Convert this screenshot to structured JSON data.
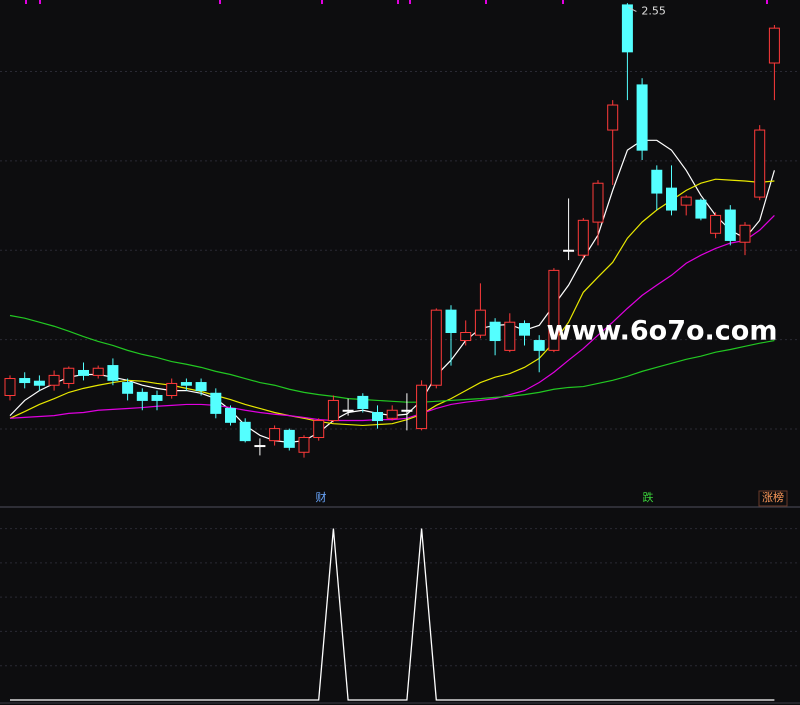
{
  "chart_data": [
    {
      "type": "candlestick",
      "watermark": "www.6o7o.com",
      "annotations": [
        {
          "text": "2.55",
          "value": 2.55
        }
      ],
      "events": [
        "财",
        "跌",
        "涨榜"
      ],
      "up_color": "#ff3a3a",
      "down_color": "#54ffff",
      "flat_color": "#ffffff",
      "ylim": [
        1.43,
        2.56
      ],
      "grid_lines": [
        1.6,
        1.8,
        2.0,
        2.2,
        2.4
      ],
      "open": [
        1.675,
        1.713,
        1.707,
        1.698,
        1.702,
        1.731,
        1.72,
        1.742,
        1.704,
        1.682,
        1.675,
        1.675,
        1.704,
        1.704,
        1.68,
        1.646,
        1.615,
        1.563,
        1.574,
        1.597,
        1.548,
        1.581,
        1.619,
        1.642,
        1.673,
        1.637,
        1.624,
        1.642,
        1.601,
        1.698,
        1.866,
        1.798,
        1.81,
        1.839,
        1.776,
        1.836,
        1.798,
        1.776,
        2.0,
        1.989,
        2.063,
        2.269,
        2.549,
        2.37,
        2.179,
        2.139,
        2.101,
        2.112,
        2.038,
        2.09,
        2.018,
        2.119,
        2.419
      ],
      "high": [
        1.72,
        1.727,
        1.72,
        1.731,
        1.74,
        1.749,
        1.742,
        1.758,
        1.713,
        1.691,
        1.686,
        1.713,
        1.713,
        1.713,
        1.691,
        1.653,
        1.624,
        1.579,
        1.608,
        1.601,
        1.586,
        1.624,
        1.675,
        1.668,
        1.68,
        1.653,
        1.653,
        1.68,
        1.709,
        1.87,
        1.877,
        1.843,
        1.926,
        1.848,
        1.859,
        1.843,
        1.81,
        1.96,
        2.116,
        2.072,
        2.157,
        2.336,
        2.553,
        2.385,
        2.19,
        2.19,
        2.123,
        2.116,
        2.085,
        2.101,
        2.063,
        2.28,
        2.504
      ],
      "low": [
        1.664,
        1.691,
        1.686,
        1.686,
        1.691,
        1.709,
        1.713,
        1.698,
        1.664,
        1.642,
        1.642,
        1.668,
        1.686,
        1.675,
        1.624,
        1.608,
        1.57,
        1.541,
        1.563,
        1.552,
        1.536,
        1.574,
        1.615,
        1.63,
        1.637,
        1.601,
        1.619,
        1.597,
        1.597,
        1.691,
        1.742,
        1.787,
        1.803,
        1.765,
        1.772,
        1.787,
        1.727,
        1.772,
        1.978,
        1.982,
        2.011,
        2.146,
        2.336,
        2.202,
        2.09,
        2.078,
        2.078,
        2.067,
        2.027,
        2.011,
        1.989,
        2.112,
        2.336
      ],
      "close": [
        1.713,
        1.704,
        1.698,
        1.72,
        1.736,
        1.72,
        1.736,
        1.709,
        1.68,
        1.664,
        1.664,
        1.702,
        1.698,
        1.686,
        1.635,
        1.615,
        1.574,
        1.563,
        1.601,
        1.559,
        1.581,
        1.619,
        1.664,
        1.642,
        1.646,
        1.619,
        1.642,
        1.642,
        1.698,
        1.866,
        1.816,
        1.816,
        1.866,
        1.798,
        1.839,
        1.81,
        1.776,
        1.955,
        2.0,
        2.067,
        2.15,
        2.325,
        2.444,
        2.224,
        2.128,
        2.09,
        2.119,
        2.072,
        2.078,
        2.022,
        2.056,
        2.269,
        2.497
      ],
      "series": [
        {
          "color": "#ffffff",
          "values": [
            1.63,
            1.664,
            1.686,
            1.702,
            1.716,
            1.722,
            1.722,
            1.716,
            1.709,
            1.698,
            1.691,
            1.686,
            1.686,
            1.68,
            1.668,
            1.642,
            1.608,
            1.586,
            1.574,
            1.57,
            1.574,
            1.592,
            1.619,
            1.637,
            1.642,
            1.635,
            1.63,
            1.633,
            1.664,
            1.72,
            1.754,
            1.798,
            1.825,
            1.832,
            1.834,
            1.821,
            1.832,
            1.877,
            1.922,
            1.982,
            2.034,
            2.134,
            2.224,
            2.246,
            2.246,
            2.224,
            2.179,
            2.123,
            2.078,
            2.045,
            2.027,
            2.067,
            2.179
          ]
        },
        {
          "color": "#e8e800",
          "values": [
            1.624,
            1.639,
            1.655,
            1.668,
            1.682,
            1.691,
            1.698,
            1.704,
            1.709,
            1.707,
            1.702,
            1.698,
            1.691,
            1.684,
            1.675,
            1.666,
            1.655,
            1.646,
            1.637,
            1.63,
            1.624,
            1.617,
            1.612,
            1.61,
            1.608,
            1.61,
            1.612,
            1.621,
            1.633,
            1.653,
            1.668,
            1.686,
            1.704,
            1.716,
            1.724,
            1.738,
            1.758,
            1.794,
            1.839,
            1.906,
            1.94,
            1.973,
            2.027,
            2.063,
            2.09,
            2.112,
            2.134,
            2.15,
            2.159,
            2.157,
            2.155,
            2.152,
            2.155
          ]
        },
        {
          "color": "#e000e0",
          "values": [
            1.624,
            1.626,
            1.628,
            1.63,
            1.635,
            1.637,
            1.642,
            1.644,
            1.646,
            1.648,
            1.651,
            1.653,
            1.655,
            1.655,
            1.653,
            1.648,
            1.642,
            1.637,
            1.633,
            1.63,
            1.626,
            1.621,
            1.619,
            1.619,
            1.619,
            1.621,
            1.621,
            1.624,
            1.635,
            1.646,
            1.655,
            1.66,
            1.664,
            1.668,
            1.677,
            1.686,
            1.704,
            1.727,
            1.754,
            1.78,
            1.81,
            1.839,
            1.87,
            1.899,
            1.922,
            1.944,
            1.971,
            1.989,
            2.004,
            2.016,
            2.022,
            2.045,
            2.078
          ]
        },
        {
          "color": "#22c822",
          "values": [
            1.854,
            1.848,
            1.839,
            1.83,
            1.819,
            1.807,
            1.796,
            1.787,
            1.776,
            1.767,
            1.76,
            1.751,
            1.745,
            1.738,
            1.729,
            1.722,
            1.713,
            1.704,
            1.698,
            1.689,
            1.682,
            1.677,
            1.673,
            1.668,
            1.666,
            1.664,
            1.662,
            1.66,
            1.66,
            1.662,
            1.664,
            1.666,
            1.668,
            1.671,
            1.673,
            1.677,
            1.682,
            1.689,
            1.693,
            1.695,
            1.702,
            1.709,
            1.718,
            1.729,
            1.738,
            1.747,
            1.756,
            1.763,
            1.772,
            1.778,
            1.785,
            1.792,
            1.798
          ]
        }
      ]
    },
    {
      "type": "line",
      "color": "#ffffff",
      "ylim": [
        0,
        1.12
      ],
      "grid_lines": [
        0.2,
        0.4,
        0.6,
        0.8,
        1.0
      ],
      "values": [
        0,
        0,
        0,
        0,
        0,
        0,
        0,
        0,
        0,
        0,
        0,
        0,
        0,
        0,
        0,
        0,
        0,
        0,
        0,
        0,
        0,
        0,
        1,
        0,
        0,
        0,
        0,
        0,
        1,
        0,
        0,
        0,
        0,
        0,
        0,
        0,
        0,
        0,
        0,
        0,
        0,
        0,
        0,
        0,
        0,
        0,
        0,
        0,
        0,
        0,
        0,
        0,
        0
      ]
    }
  ]
}
